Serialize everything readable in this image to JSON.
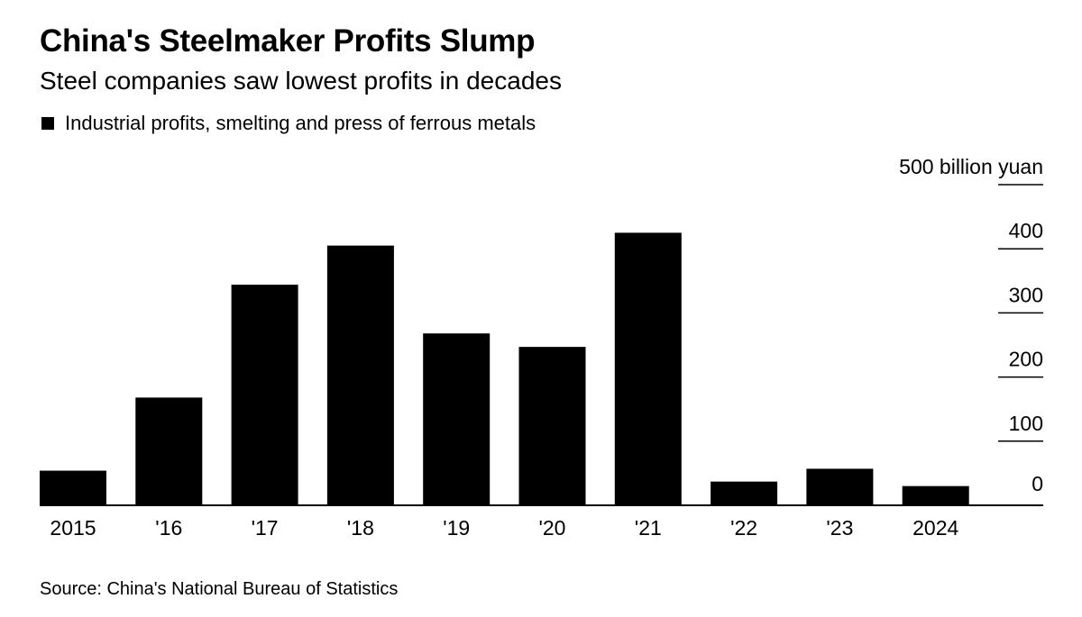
{
  "title": "China's Steelmaker Profits Slump",
  "subtitle": "Steel companies saw lowest profits in decades",
  "legend": {
    "label": "Industrial profits, smelting and press of ferrous metals",
    "color": "#000000"
  },
  "source": "Source: China's National Bureau of Statistics",
  "chart_data": {
    "type": "bar",
    "title": "China's Steelmaker Profits Slump",
    "subtitle": "Steel companies saw lowest profits in decades",
    "xlabel": "",
    "ylabel": "",
    "unit_label": "500 billion yuan",
    "categories": [
      "2015",
      "'16",
      "'17",
      "'18",
      "'19",
      "'20",
      "'21",
      "'22",
      "'23",
      "2024"
    ],
    "series": [
      {
        "name": "Industrial profits, smelting and press of ferrous metals",
        "values": [
          54,
          168,
          344,
          405,
          268,
          247,
          425,
          37,
          57,
          30
        ],
        "color": "#000000"
      }
    ],
    "ylim": [
      0,
      500
    ],
    "yticks": [
      0,
      100,
      200,
      300,
      400,
      500
    ],
    "ytick_labels": [
      "0",
      "100",
      "200",
      "300",
      "400",
      "500 billion yuan"
    ],
    "yaxis_position": "right",
    "grid": true
  }
}
